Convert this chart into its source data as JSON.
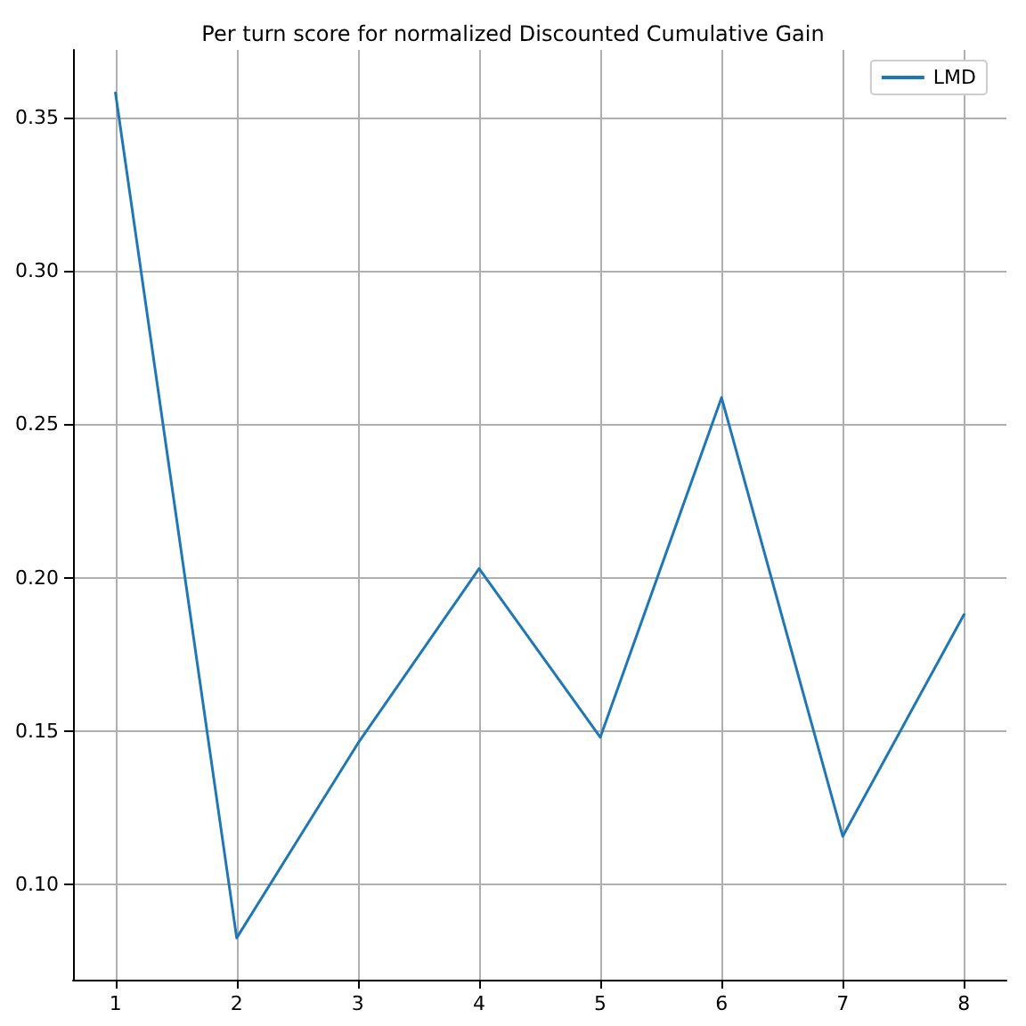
{
  "chart_data": {
    "type": "line",
    "title": "Per turn score for normalized Discounted Cumulative Gain",
    "x": [
      1,
      2,
      3,
      4,
      5,
      6,
      7,
      8
    ],
    "series": [
      {
        "name": "LMD",
        "color": "#1f77b4",
        "values": [
          0.358,
          0.0826,
          0.146,
          0.203,
          0.148,
          0.2587,
          0.1157,
          0.188
        ]
      }
    ],
    "xlim": [
      0.65,
      8.35
    ],
    "xticks": [
      1,
      2,
      3,
      4,
      5,
      6,
      7,
      8
    ],
    "ylim": [
      0.069,
      0.372
    ],
    "yticks": [
      {
        "value": 0.1,
        "label": "0.10"
      },
      {
        "value": 0.15,
        "label": "0.15"
      },
      {
        "value": 0.2,
        "label": "0.20"
      },
      {
        "value": 0.25,
        "label": "0.25"
      },
      {
        "value": 0.3,
        "label": "0.30"
      },
      {
        "value": 0.35,
        "label": "0.35"
      }
    ],
    "grid": true,
    "legend": "top right",
    "marker": "none",
    "line_style": "solid"
  }
}
